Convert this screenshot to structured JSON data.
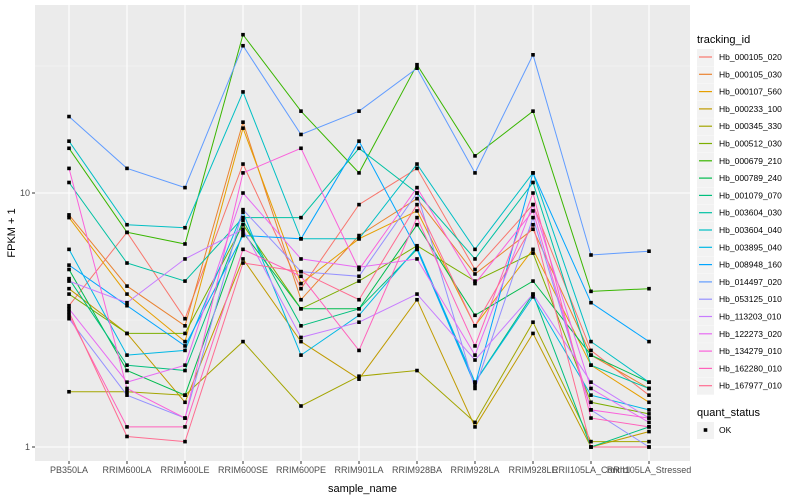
{
  "chart_data": {
    "type": "line",
    "title": "",
    "xlabel": "sample_name",
    "ylabel": "FPKM + 1",
    "y_scale": "log10",
    "ylim": [
      0.85,
      55
    ],
    "y_ticks": [
      1,
      10
    ],
    "y_tick_labels": [
      "1",
      "10"
    ],
    "grid": true,
    "categories": [
      "PB350LA",
      "RRIM600LA",
      "RRIM600LE",
      "RRIM600SE",
      "RRIM600PE",
      "RRIM901LA",
      "RRIM928BA",
      "RRIM928LA",
      "RRIM928LE",
      "RRII105LA_Control",
      "RRII105LA_Stressed"
    ],
    "legend": {
      "placement": "right",
      "color_title": "tracking_id",
      "shape_title": "quant_status",
      "shape_entries": [
        "OK"
      ]
    },
    "series": [
      {
        "name": "Hb_000105_020",
        "color": "#F8766D",
        "values": [
          3.6,
          7.0,
          3.2,
          13.0,
          4.2,
          9.0,
          12.5,
          5.0,
          9.0,
          2.4,
          1.6
        ]
      },
      {
        "name": "Hb_000105_030",
        "color": "#EA8331",
        "values": [
          8.2,
          4.3,
          3.0,
          19.0,
          3.8,
          6.8,
          9.5,
          4.8,
          7.2,
          2.3,
          1.7
        ]
      },
      {
        "name": "Hb_000107_560",
        "color": "#E69F00",
        "values": [
          8.0,
          4.0,
          2.6,
          18.0,
          4.4,
          6.6,
          8.5,
          3.0,
          6.0,
          2.1,
          1.5
        ]
      },
      {
        "name": "Hb_000233_100",
        "color": "#C09B00",
        "values": [
          4.2,
          2.8,
          1.5,
          5.5,
          2.6,
          1.85,
          3.8,
          1.2,
          2.8,
          1.0,
          1.15
        ]
      },
      {
        "name": "Hb_000345_330",
        "color": "#A3A500",
        "values": [
          1.65,
          1.65,
          1.6,
          2.6,
          1.45,
          1.9,
          2.0,
          1.25,
          3.1,
          1.05,
          1.05
        ]
      },
      {
        "name": "Hb_000512_030",
        "color": "#7CAE00",
        "values": [
          4.0,
          2.8,
          2.8,
          7.5,
          3.5,
          4.5,
          6.2,
          4.5,
          5.8,
          1.5,
          1.35
        ]
      },
      {
        "name": "Hb_000679_210",
        "color": "#39B600",
        "values": [
          15.0,
          7.0,
          6.3,
          42.0,
          21.0,
          12.0,
          32.0,
          14.0,
          21.0,
          4.1,
          4.2
        ]
      },
      {
        "name": "Hb_000789_240",
        "color": "#00BB4E",
        "values": [
          5.0,
          2.0,
          1.6,
          7.0,
          3.5,
          3.5,
          7.5,
          3.3,
          4.5,
          2.3,
          1.8
        ]
      },
      {
        "name": "Hb_001079_070",
        "color": "#00BF7D",
        "values": [
          4.6,
          2.1,
          2.0,
          7.8,
          3.0,
          3.5,
          6.0,
          1.8,
          4.0,
          1.0,
          1.2
        ]
      },
      {
        "name": "Hb_003604_030",
        "color": "#00C1A3",
        "values": [
          11.0,
          5.3,
          4.5,
          8.0,
          8.0,
          15.0,
          10.0,
          5.5,
          11.0,
          2.1,
          1.7
        ]
      },
      {
        "name": "Hb_003604_040",
        "color": "#00BFC4",
        "values": [
          16.0,
          7.5,
          7.3,
          25.0,
          6.6,
          6.6,
          13.0,
          6.0,
          12.0,
          2.6,
          1.8
        ]
      },
      {
        "name": "Hb_003895_040",
        "color": "#00B8E5",
        "values": [
          6.0,
          2.3,
          2.4,
          8.4,
          2.3,
          3.3,
          6.1,
          1.8,
          3.9,
          1.6,
          1.4
        ]
      },
      {
        "name": "Hb_008948_160",
        "color": "#00A5FF",
        "values": [
          5.2,
          3.6,
          2.5,
          6.8,
          6.6,
          16.0,
          6.0,
          1.75,
          12.0,
          3.7,
          2.6
        ]
      },
      {
        "name": "Hb_014497_020",
        "color": "#619CFF",
        "values": [
          20.0,
          12.5,
          10.5,
          38.0,
          17.0,
          21.0,
          31.0,
          12.0,
          35.0,
          5.7,
          5.9
        ]
      },
      {
        "name": "Hb_053125_010",
        "color": "#9590FF",
        "values": [
          3.2,
          1.6,
          1.3,
          8.6,
          4.9,
          4.7,
          10.0,
          1.7,
          8.0,
          1.4,
          1.0
        ]
      },
      {
        "name": "Hb_113203_010",
        "color": "#C77CFF",
        "values": [
          4.5,
          3.7,
          5.5,
          7.2,
          2.7,
          3.1,
          4.0,
          2.2,
          4.0,
          1.8,
          1.3
        ]
      },
      {
        "name": "Hb_122273_020",
        "color": "#E76BF3",
        "values": [
          3.5,
          1.8,
          2.1,
          10.0,
          5.5,
          5.1,
          5.5,
          2.3,
          9.0,
          1.7,
          1.25
        ]
      },
      {
        "name": "Hb_134279_010",
        "color": "#FA62DB",
        "values": [
          12.5,
          1.7,
          1.3,
          12.0,
          15.0,
          5.0,
          10.5,
          4.4,
          8.5,
          1.4,
          1.3
        ]
      },
      {
        "name": "Hb_162280_010",
        "color": "#FF62BC",
        "values": [
          3.3,
          1.2,
          1.2,
          6.0,
          4.7,
          2.4,
          8.0,
          2.5,
          10.0,
          1.3,
          1.2
        ]
      },
      {
        "name": "Hb_167977_010",
        "color": "#FF6C91",
        "values": [
          3.4,
          1.1,
          1.05,
          5.3,
          4.9,
          3.8,
          9.0,
          3.0,
          7.5,
          1.0,
          1.0
        ]
      }
    ]
  }
}
